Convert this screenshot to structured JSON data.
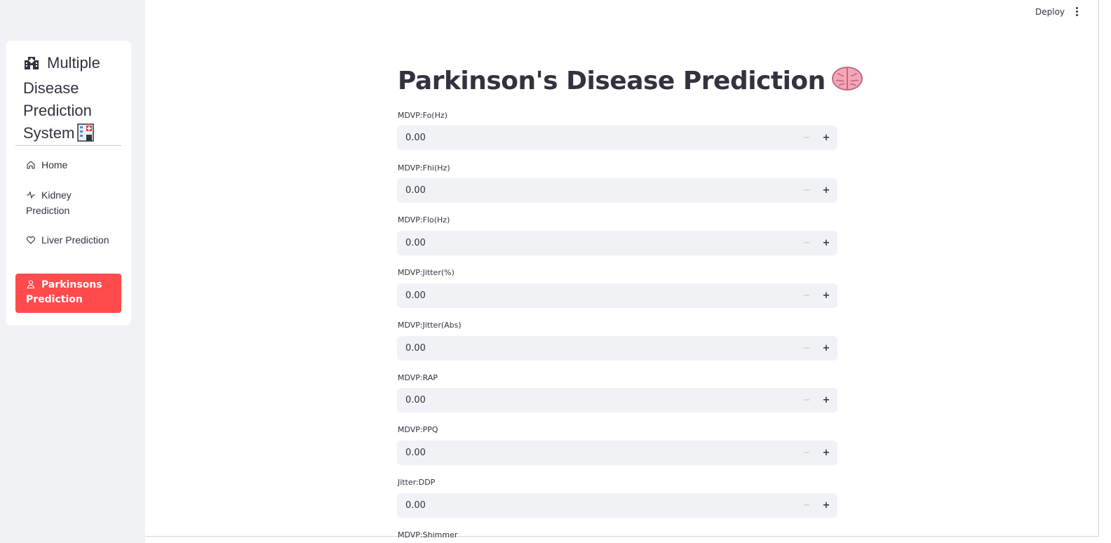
{
  "sidebar": {
    "menu_title": "Multiple Disease Prediction System",
    "items": [
      {
        "label": "Home",
        "icon": "house-icon"
      },
      {
        "label": "Kidney Prediction",
        "icon": "activity-icon"
      },
      {
        "label": "Liver Prediction",
        "icon": "heart-icon"
      },
      {
        "label": "Parkinsons Prediction",
        "icon": "person-icon",
        "active": true
      }
    ]
  },
  "header": {
    "deploy_label": "Deploy",
    "menu_icon": "kebab-menu-icon"
  },
  "main": {
    "title": "Parkinson's Disease Prediction",
    "title_icon": "brain-icon",
    "fields": [
      {
        "label": "MDVP:Fo(Hz)",
        "value": "0.00"
      },
      {
        "label": "MDVP:Fhi(Hz)",
        "value": "0.00"
      },
      {
        "label": "MDVP:Flo(Hz)",
        "value": "0.00"
      },
      {
        "label": "MDVP:Jitter(%)",
        "value": "0.00"
      },
      {
        "label": "MDVP:Jitter(Abs)",
        "value": "0.00"
      },
      {
        "label": "MDVP:RAP",
        "value": "0.00"
      },
      {
        "label": "MDVP:PPQ",
        "value": "0.00"
      },
      {
        "label": "Jitter:DDP",
        "value": "0.00"
      },
      {
        "label": "MDVP:Shimmer",
        "value": ""
      }
    ],
    "stepper": {
      "minus": "−",
      "plus": "+"
    }
  },
  "colors": {
    "accent": "#ff4b4b",
    "sidebar_bg": "#f0f2f6",
    "input_bg": "#f0f2f6",
    "text": "#31333f"
  }
}
